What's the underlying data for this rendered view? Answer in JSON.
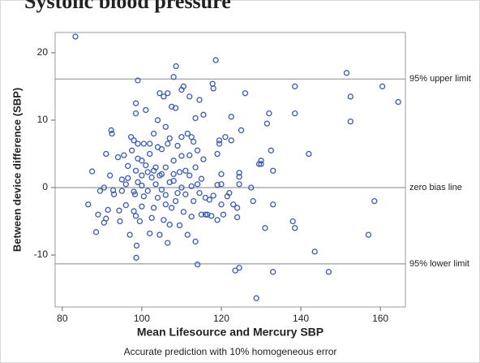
{
  "chart_data": {
    "type": "scatter",
    "title": "Systolic blood pressure",
    "x_label": "Mean Lifesource and Mercury SBP",
    "y_label": "Between device difference (SBP)",
    "caption": "Accurate prediction with 10% homogeneous error",
    "color": "#3a5bb0",
    "grid": false,
    "xlim": [
      78.2,
      166.3
    ],
    "ylim": [
      -17.7,
      23
    ],
    "xticks": [
      80,
      100,
      120,
      140,
      160
    ],
    "yticks": [
      -10,
      0,
      10,
      20
    ],
    "reference_lines": [
      {
        "value": 16.1,
        "label": "95% upper limit"
      },
      {
        "value": 0,
        "label": "zero bias line"
      },
      {
        "value": -11.3,
        "label": "95% lower limit"
      }
    ],
    "x": [
      83.3,
      86.5,
      87.5,
      88.5,
      89,
      89.5,
      90.5,
      90.5,
      91,
      91.5,
      91,
      92,
      92.3,
      92.5,
      92.8,
      93,
      94,
      94.3,
      94.5,
      95,
      95,
      95.5,
      96,
      96,
      96.5,
      96.5,
      97,
      97.3,
      97.5,
      98,
      98,
      98,
      98.3,
      98.5,
      98.5,
      98.5,
      98.5,
      98.7,
      98.6,
      99,
      99,
      99,
      99,
      99.5,
      100,
      100,
      100,
      100,
      100.5,
      100.5,
      101,
      101,
      101.5,
      101.5,
      102,
      102,
      102,
      102.5,
      102.5,
      103,
      103,
      103,
      103.5,
      103.5,
      104,
      104,
      104,
      104.5,
      104.5,
      104.5,
      105,
      105,
      105,
      105.5,
      105.5,
      106,
      106,
      106,
      106,
      106.5,
      106.5,
      106.5,
      107,
      107,
      107,
      107.5,
      107.5,
      108,
      108,
      108,
      108,
      108.6,
      108.5,
      108.5,
      109,
      109,
      109.5,
      109.5,
      110,
      110,
      110,
      110,
      110.5,
      110.5,
      111,
      111,
      111.5,
      111.5,
      112,
      112,
      112,
      112.5,
      112.5,
      112.5,
      113,
      113,
      113.5,
      113.5,
      113.5,
      114,
      114,
      114,
      114.5,
      114.5,
      115,
      115,
      115.5,
      115.5,
      116,
      116,
      116.5,
      117,
      117.5,
      117.8,
      118,
      118,
      118.6,
      119,
      119,
      119,
      119.5,
      119.5,
      120,
      120,
      120,
      120.5,
      121,
      121.5,
      122,
      122.5,
      122.5,
      123,
      123.5,
      124,
      124,
      124.5,
      124.5,
      124.5,
      124.5,
      125,
      126,
      127.5,
      128,
      128.8,
      129.5,
      130,
      130,
      131,
      131.5,
      132,
      132.5,
      133,
      133,
      133,
      138,
      138.5,
      138.5,
      138.5,
      142,
      143.5,
      147,
      151.5,
      152.5,
      152.5,
      157,
      158.5,
      160.5,
      164.5
    ],
    "values": [
      22.4,
      -2.5,
      2.4,
      -6.6,
      -4,
      -0.5,
      0,
      -5.2,
      5,
      -3.3,
      -4.6,
      1.8,
      8.5,
      8,
      -0.4,
      -1,
      4.5,
      -3.4,
      -5,
      1.2,
      -0.5,
      4.8,
      -2.6,
      0.5,
      3.2,
      1.4,
      -7,
      7.5,
      5.5,
      -0.6,
      7,
      -3.5,
      -1,
      2.5,
      11,
      12.5,
      -4.2,
      -8.6,
      -10.4,
      15.9,
      6.5,
      4.3,
      0.8,
      -5,
      1.8,
      4,
      0.3,
      -2.8,
      6.5,
      -1.3,
      3.3,
      11.5,
      2.3,
      -0.5,
      6.5,
      5,
      -6.8,
      1.5,
      -4.5,
      8,
      2.5,
      -3,
      0.5,
      3,
      10,
      6,
      -1.5,
      14,
      1.8,
      -7,
      5.7,
      -0.3,
      2,
      13.5,
      -4.8,
      9,
      3,
      -1.1,
      -2.5,
      14,
      6.5,
      -8.2,
      7.3,
      0.8,
      -5.5,
      12,
      -3,
      4,
      2,
      16.4,
      1,
      18,
      11.8,
      -2,
      6.2,
      -0.8,
      2.3,
      -5.6,
      7.5,
      14.5,
      0,
      4.7,
      15,
      -3.6,
      2.5,
      -1,
      8,
      -7,
      1.8,
      13.5,
      4.8,
      7.5,
      -4.3,
      0.2,
      6.8,
      -2,
      10.3,
      3,
      -8,
      -11.4,
      0.5,
      5.5,
      13,
      -0.8,
      1.3,
      -4,
      10.8,
      4.2,
      -4,
      -1.5,
      -4,
      -1.8,
      -4.2,
      15.4,
      14.7,
      -1.2,
      18.9,
      -4.8,
      0.4,
      5,
      6.5,
      7,
      0.5,
      -2.5,
      2,
      -4,
      7.5,
      -1.3,
      -0.8,
      10.5,
      7,
      -2.5,
      -12.3,
      -3,
      -4.4,
      -11.9,
      2.2,
      1.6,
      0.5,
      8.5,
      14,
      0,
      -2,
      -16.4,
      3.5,
      4,
      3.5,
      -6,
      9.5,
      11,
      5.5,
      2.5,
      -2.5,
      -12.5,
      -5,
      15,
      11,
      -6,
      5,
      -9.5,
      -12.5,
      17,
      13.5,
      9.8,
      -7,
      -2,
      15,
      12.7
    ]
  }
}
